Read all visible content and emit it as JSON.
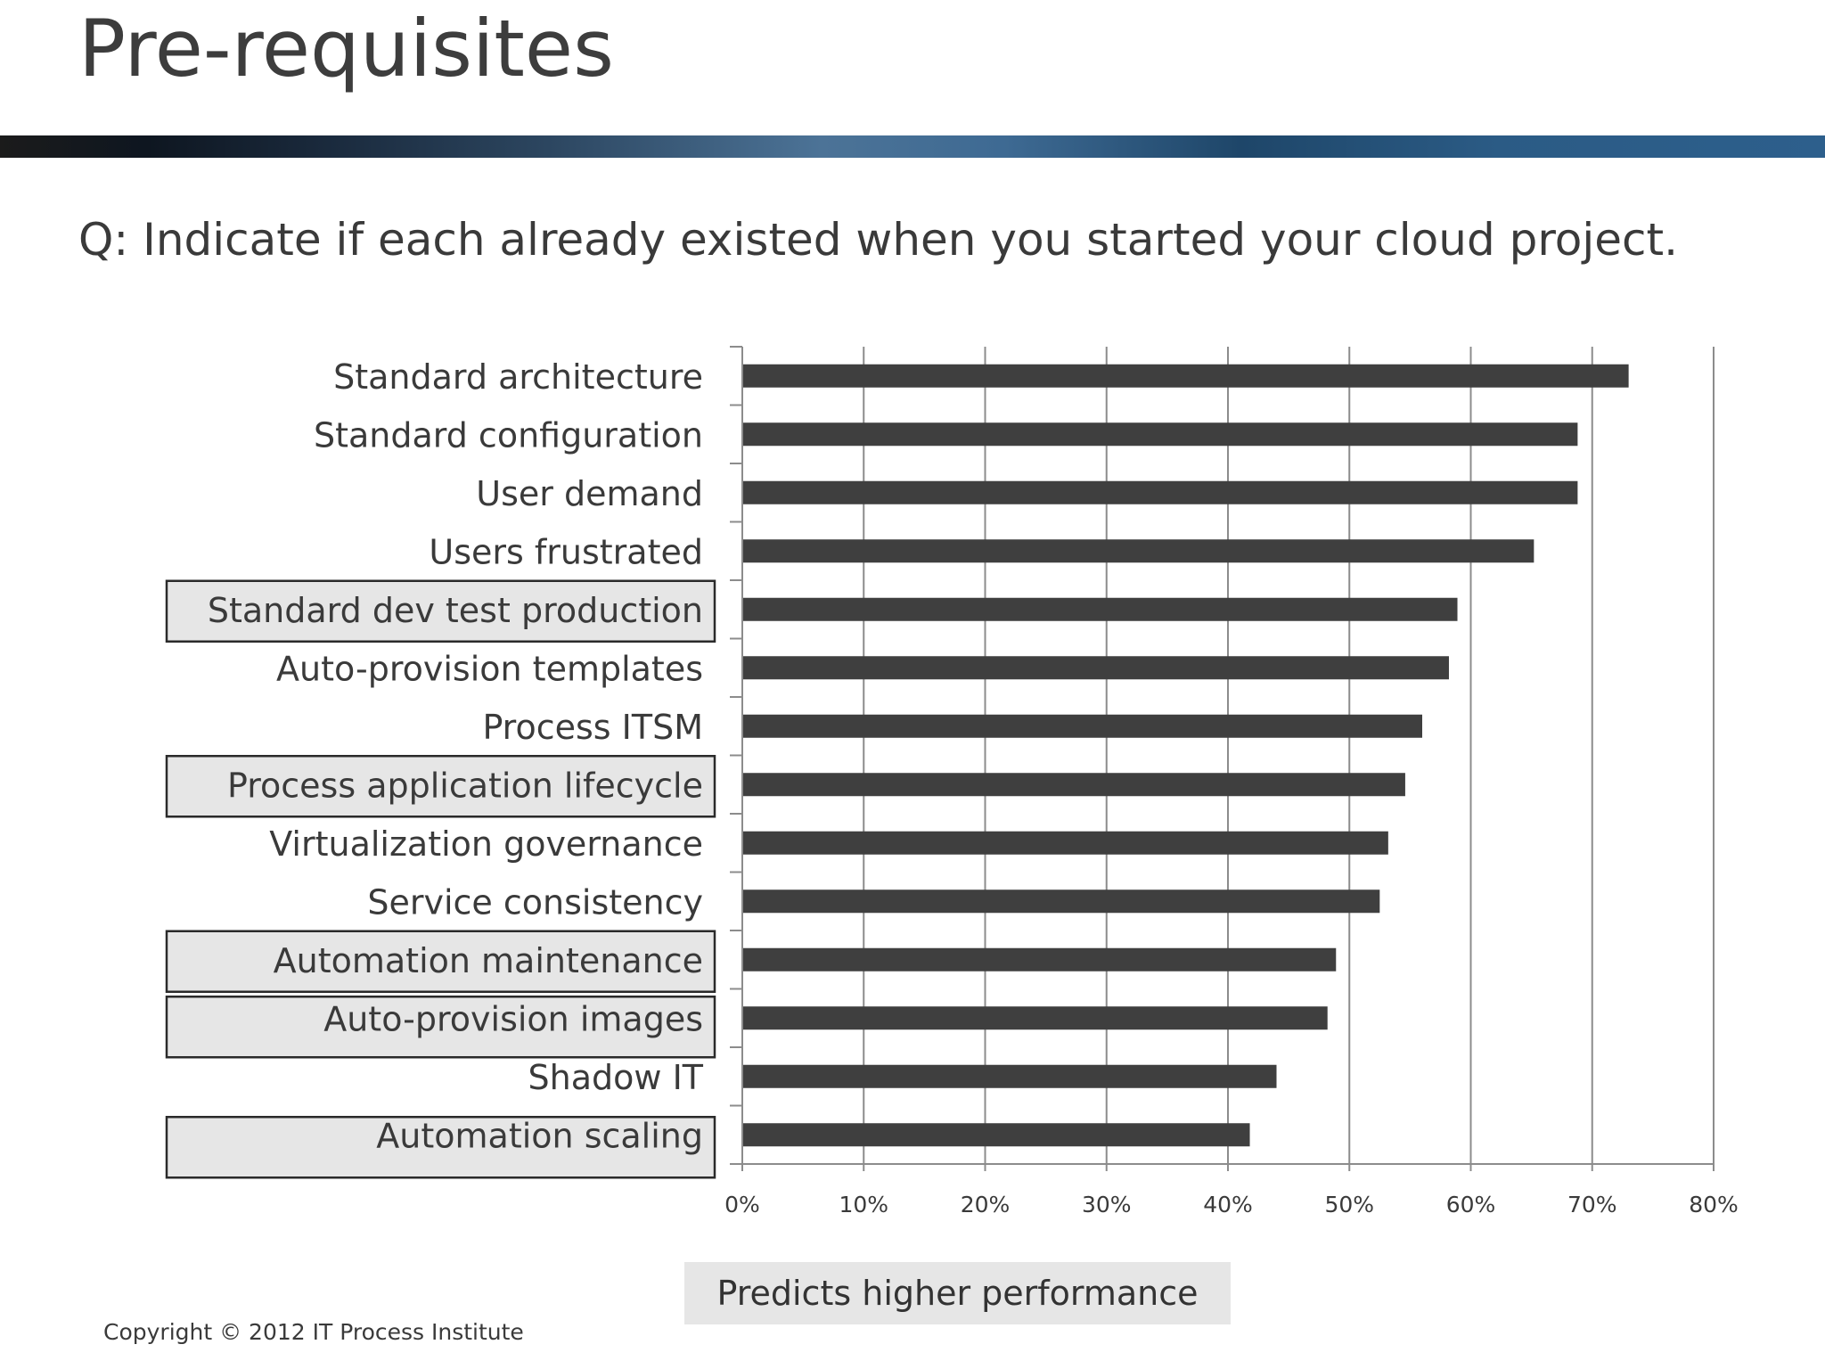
{
  "slide": {
    "title": "Pre-requisites",
    "question": "Q: Indicate if each already existed when you started your cloud project.",
    "legend_label": "Predicts higher performance",
    "copyright": "Copyright © 2012 IT Process Institute"
  },
  "colors": {
    "bar": "#3f3f3f",
    "highlight_box_fill": "#e6e6e6",
    "highlight_box_border": "#2a2a2a",
    "gridline": "#8c8c8c"
  },
  "chart_data": {
    "type": "bar",
    "orientation": "horizontal",
    "categories": [
      "Standard architecture",
      "Standard configuration",
      "User demand",
      "Users frustrated",
      "Standard dev test production",
      "Auto-provision templates",
      "Process ITSM",
      "Process application lifecycle",
      "Virtualization governance",
      "Service consistency",
      "Automation maintenance",
      "Auto-provision images",
      "Shadow IT",
      "Automation scaling"
    ],
    "values": [
      73,
      68.8,
      68.8,
      65.2,
      58.9,
      58.2,
      56,
      54.6,
      53.2,
      52.5,
      48.9,
      48.2,
      44,
      41.8
    ],
    "highlighted": [
      "Standard dev test production",
      "Process application lifecycle",
      "Automation maintenance",
      "Auto-provision images",
      "Automation scaling"
    ],
    "xlim": [
      0,
      80
    ],
    "xticks": [
      "0%",
      "10%",
      "20%",
      "30%",
      "40%",
      "50%",
      "60%",
      "70%",
      "80%"
    ],
    "grid": true,
    "legend": "bottom-center"
  }
}
